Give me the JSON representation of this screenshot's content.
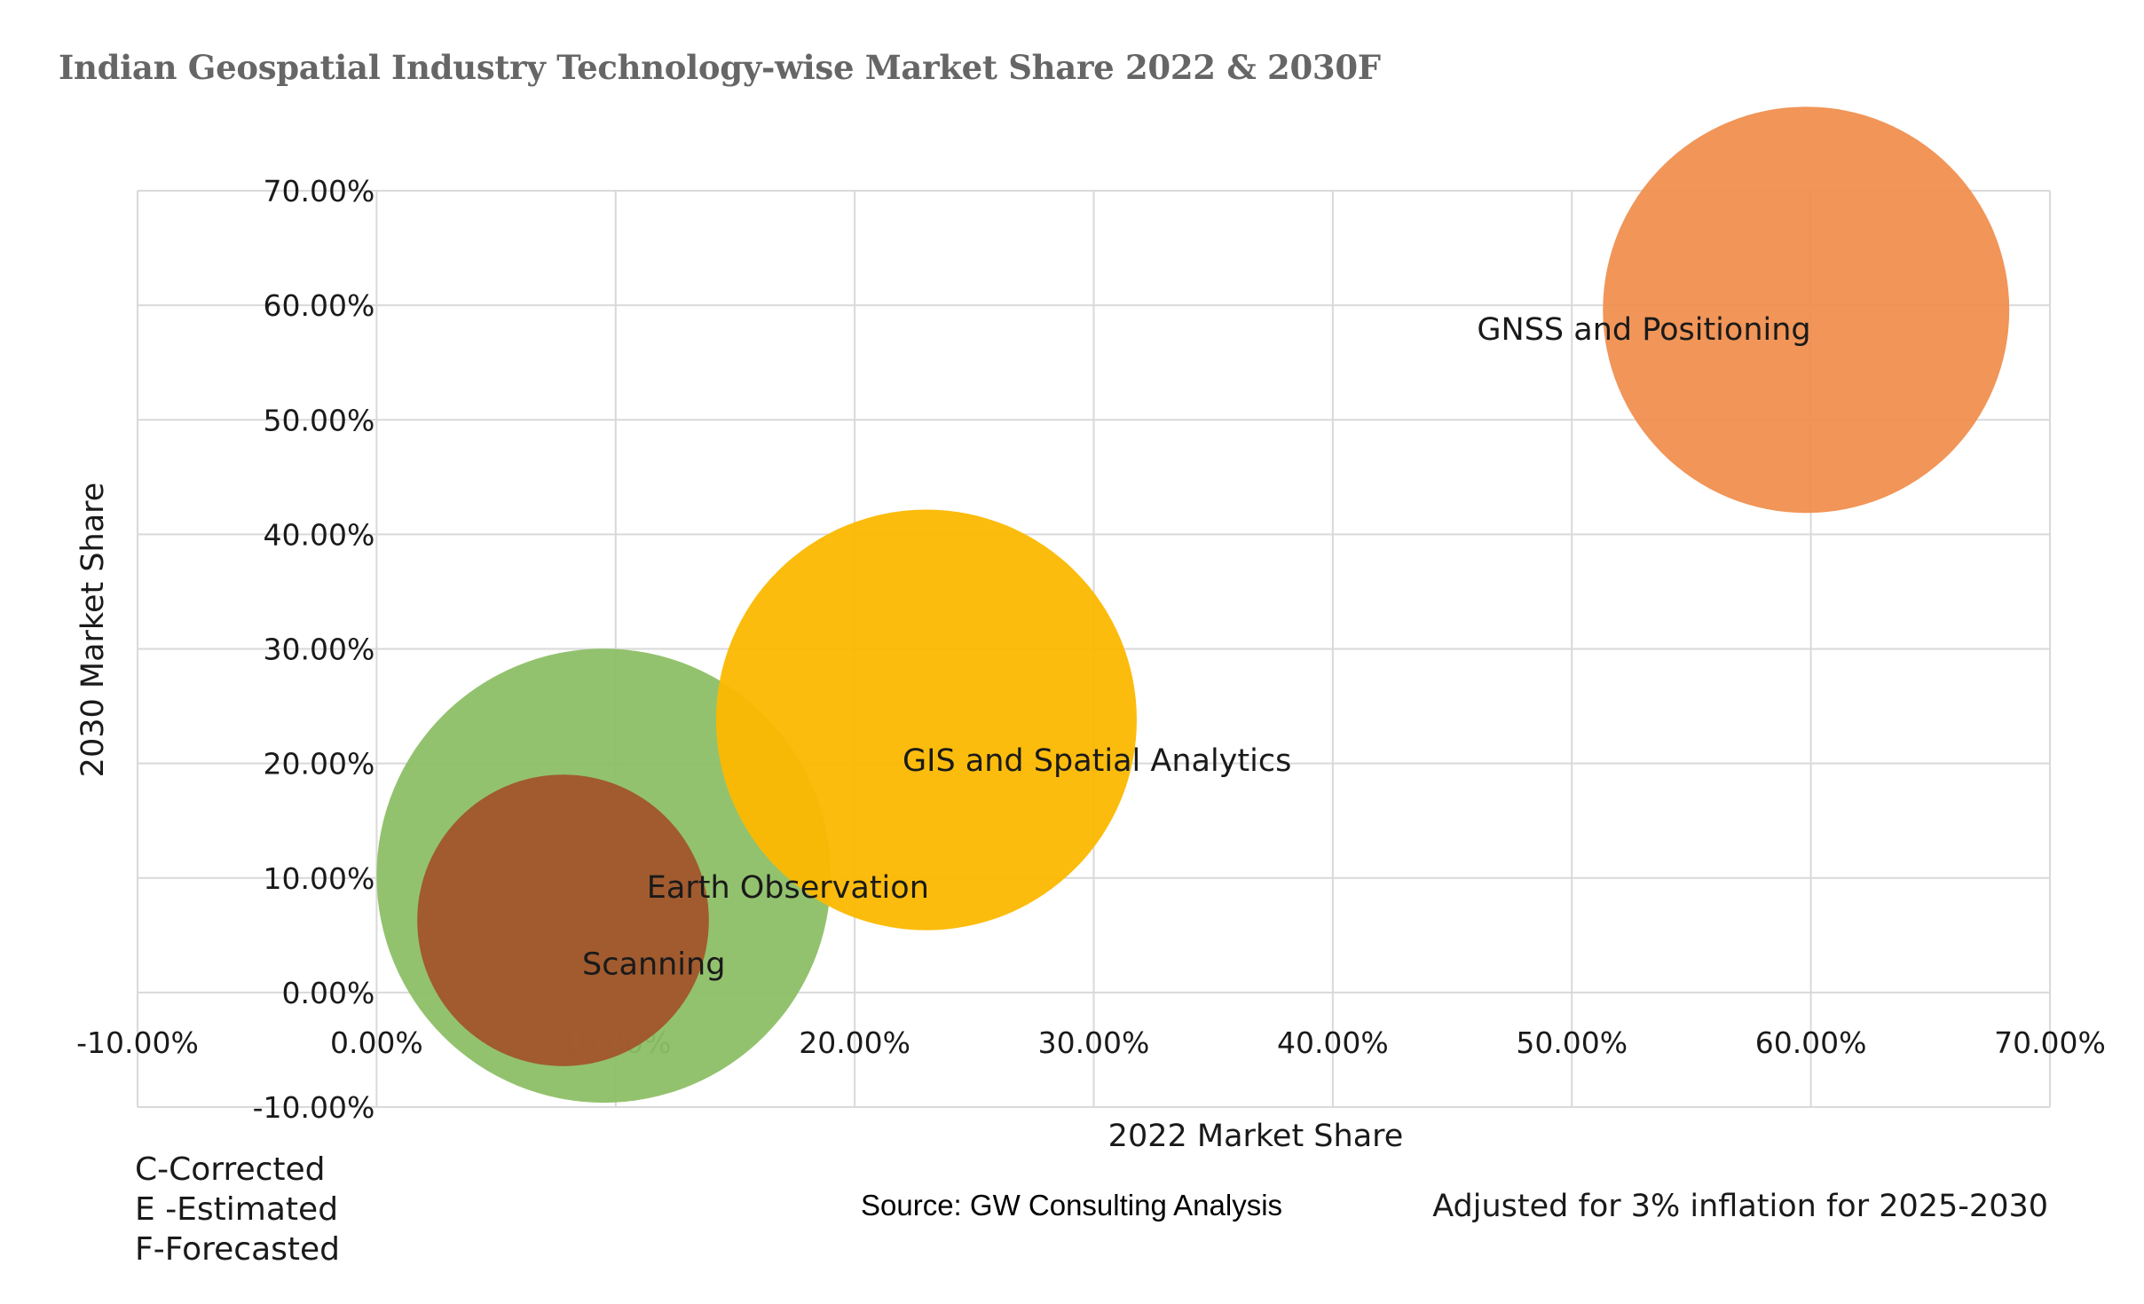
{
  "title": "Indian Geospatial Industry Technology-wise Market Share 2022 & 2030F",
  "chart_data": {
    "type": "bubble",
    "title": "Indian Geospatial Industry Technology-wise Market Share 2022 & 2030F",
    "xlabel": "2022 Market Share",
    "ylabel": "2030 Market Share",
    "xlim": [
      -10,
      70
    ],
    "ylim": [
      -10,
      70
    ],
    "x_ticks": [
      "-10.00%",
      "0.00%",
      "10.00%",
      "20.00%",
      "30.00%",
      "40.00%",
      "50.00%",
      "60.00%",
      "70.00%"
    ],
    "y_ticks": [
      "-10.00%",
      "0.00%",
      "10.00%",
      "20.00%",
      "30.00%",
      "40.00%",
      "50.00%",
      "60.00%",
      "70.00%"
    ],
    "grid": true,
    "series": [
      {
        "name": "Earth Observation",
        "x": 9.5,
        "y": 10.2,
        "size": 9.5,
        "color": "#8dbf66"
      },
      {
        "name": "GIS and Spatial Analytics",
        "x": 23.0,
        "y": 23.8,
        "size": 8.8,
        "color": "#fcb800"
      },
      {
        "name": "GNSS and Positioning",
        "x": 59.8,
        "y": 59.6,
        "size": 8.5,
        "color": "#f08f4f"
      },
      {
        "name": "Scanning",
        "x": 7.8,
        "y": 6.3,
        "size": 6.1,
        "color": "#a1552b"
      }
    ]
  },
  "notes": [
    "C-Corrected",
    "E -Estimated",
    "F-Forecasted"
  ],
  "source": "Source: GW Consulting Analysis",
  "inflation_note": "Adjusted for 3% inflation for 2025-2030"
}
